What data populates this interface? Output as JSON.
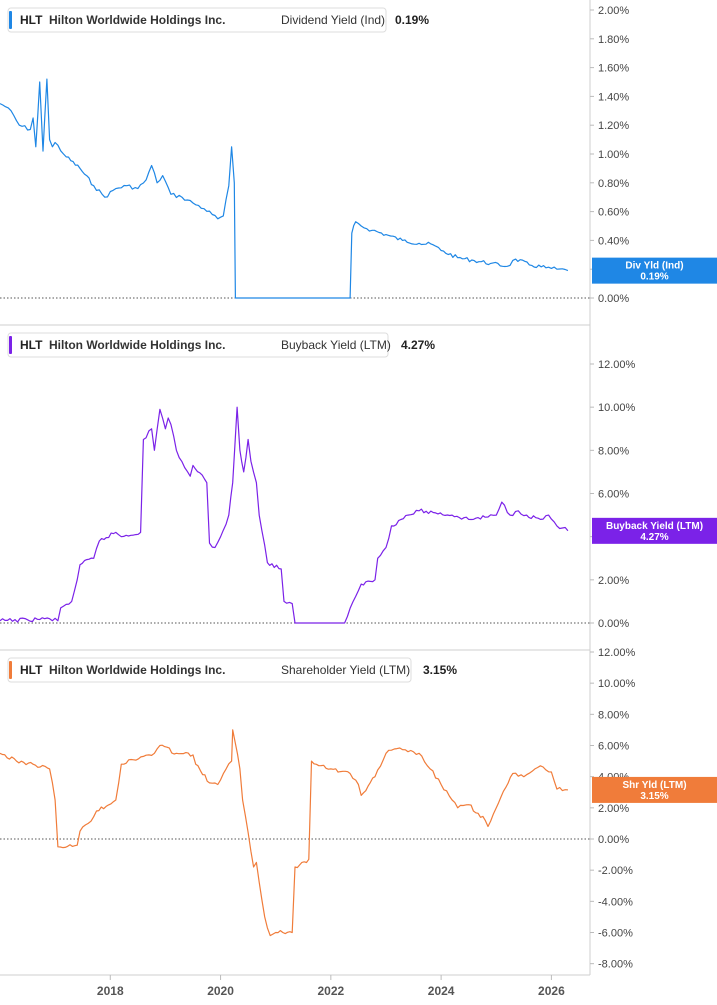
{
  "chart_data": [
    {
      "type": "line",
      "ticker": "HLT",
      "company": "Hilton Worldwide Holdings Inc.",
      "metric": "Dividend Yield (Ind)",
      "last_value": "0.19%",
      "badge_label": "Div Yld (Ind)",
      "badge_value": "0.19%",
      "color": "#1f87e5",
      "yticks": [
        "0.00%",
        "0.20%",
        "0.40%",
        "0.60%",
        "0.80%",
        "1.00%",
        "1.20%",
        "1.40%",
        "1.60%",
        "1.80%",
        "2.00%"
      ],
      "ylim": [
        0,
        2.0
      ],
      "zero_line": true,
      "series": [
        {
          "x": [
            2016.0,
            2016.15,
            2016.35,
            2016.55,
            2016.6,
            2016.65,
            2016.72,
            2016.78,
            2016.85,
            2016.9,
            2016.95,
            2017.0,
            2017.2,
            2017.45,
            2017.7,
            2017.9,
            2018.1,
            2018.3,
            2018.5,
            2018.65,
            2018.75,
            2018.85,
            2018.95,
            2019.1,
            2019.3,
            2019.5,
            2019.7,
            2019.85,
            2019.95,
            2020.05,
            2020.15,
            2020.2,
            2020.22,
            2020.25,
            2020.27,
            2021.0,
            2021.5,
            2022.0,
            2022.35,
            2022.38,
            2022.45,
            2022.55,
            2022.75,
            2023.0,
            2023.3,
            2023.6,
            2023.85,
            2024.0,
            2024.3,
            2024.6,
            2024.9,
            2025.2,
            2025.35,
            2025.6,
            2025.9,
            2026.1,
            2026.3
          ],
          "y": [
            1.35,
            1.32,
            1.2,
            1.17,
            1.25,
            1.05,
            1.5,
            1.02,
            1.52,
            1.1,
            1.05,
            1.08,
            0.98,
            0.9,
            0.78,
            0.7,
            0.76,
            0.78,
            0.76,
            0.82,
            0.92,
            0.8,
            0.85,
            0.72,
            0.7,
            0.66,
            0.62,
            0.58,
            0.55,
            0.57,
            0.78,
            1.05,
            0.95,
            0.8,
            0.0,
            0.0,
            0.0,
            0.0,
            0.0,
            0.45,
            0.53,
            0.5,
            0.47,
            0.44,
            0.4,
            0.38,
            0.37,
            0.33,
            0.28,
            0.26,
            0.24,
            0.22,
            0.27,
            0.23,
            0.21,
            0.2,
            0.19
          ]
        }
      ]
    },
    {
      "type": "line",
      "ticker": "HLT",
      "company": "Hilton Worldwide Holdings Inc.",
      "metric": "Buyback Yield (LTM)",
      "last_value": "4.27%",
      "badge_label": "Buyback Yield (LTM)",
      "badge_value": "4.27%",
      "color": "#7b22e8",
      "yticks": [
        "0.00%",
        "2.00%",
        "4.00%",
        "6.00%",
        "8.00%",
        "10.00%",
        "12.00%"
      ],
      "ylim": [
        0,
        12.0
      ],
      "zero_line": true,
      "series": [
        {
          "x": [
            2016.0,
            2016.5,
            2016.9,
            2017.05,
            2017.1,
            2017.3,
            2017.4,
            2017.45,
            2017.7,
            2017.8,
            2018.1,
            2018.2,
            2018.55,
            2018.6,
            2018.75,
            2018.8,
            2018.9,
            2019.0,
            2019.05,
            2019.1,
            2019.2,
            2019.35,
            2019.45,
            2019.5,
            2019.75,
            2019.8,
            2019.9,
            2020.0,
            2020.05,
            2020.15,
            2020.22,
            2020.3,
            2020.35,
            2020.42,
            2020.5,
            2020.55,
            2020.65,
            2020.7,
            2020.85,
            2021.1,
            2021.15,
            2021.3,
            2021.35,
            2021.6,
            2021.9,
            2022.25,
            2022.3,
            2022.5,
            2022.55,
            2022.8,
            2022.85,
            2023.0,
            2023.1,
            2023.4,
            2023.6,
            2023.9,
            2024.2,
            2024.5,
            2024.8,
            2025.0,
            2025.1,
            2025.25,
            2025.4,
            2025.55,
            2025.8,
            2025.95,
            2026.1,
            2026.2,
            2026.3
          ],
          "y": [
            0.1,
            0.15,
            0.2,
            0.1,
            0.7,
            1.0,
            2.0,
            2.7,
            3.0,
            3.8,
            4.2,
            4.0,
            4.2,
            8.5,
            9.0,
            8.0,
            9.9,
            9.0,
            9.5,
            9.2,
            8.0,
            7.2,
            6.8,
            7.3,
            6.5,
            3.7,
            3.5,
            4.0,
            4.3,
            5.0,
            6.5,
            10.0,
            8.0,
            7.0,
            8.5,
            7.5,
            6.5,
            5.0,
            2.8,
            2.5,
            1.0,
            0.9,
            0.0,
            0.0,
            0.0,
            0.0,
            0.3,
            1.5,
            1.8,
            2.0,
            3.0,
            3.5,
            4.5,
            5.0,
            5.2,
            5.1,
            5.0,
            4.8,
            4.9,
            5.0,
            5.6,
            5.0,
            5.2,
            5.0,
            4.8,
            5.0,
            4.5,
            4.4,
            4.27
          ]
        }
      ]
    },
    {
      "type": "line",
      "ticker": "HLT",
      "company": "Hilton Worldwide Holdings Inc.",
      "metric": "Shareholder Yield (LTM)",
      "last_value": "3.15%",
      "badge_label": "Shr Yld (LTM)",
      "badge_value": "3.15%",
      "color": "#f07c3a",
      "yticks": [
        "-8.00%",
        "-6.00%",
        "-4.00%",
        "-2.00%",
        "0.00%",
        "2.00%",
        "4.00%",
        "6.00%",
        "8.00%",
        "10.00%",
        "12.00%"
      ],
      "ylim": [
        -8.0,
        12.0
      ],
      "zero_line": true,
      "series": [
        {
          "x": [
            2016.0,
            2016.3,
            2016.6,
            2016.9,
            2017.0,
            2017.05,
            2017.4,
            2017.45,
            2017.6,
            2017.75,
            2018.1,
            2018.2,
            2018.6,
            2018.8,
            2018.9,
            2019.2,
            2019.5,
            2019.55,
            2019.8,
            2019.95,
            2020.1,
            2020.2,
            2020.22,
            2020.35,
            2020.4,
            2020.6,
            2020.65,
            2020.8,
            2020.9,
            2021.0,
            2021.3,
            2021.35,
            2021.6,
            2021.65,
            2022.0,
            2022.35,
            2022.5,
            2022.55,
            2022.8,
            2023.0,
            2023.2,
            2023.4,
            2023.6,
            2023.8,
            2024.0,
            2024.2,
            2024.3,
            2024.5,
            2024.8,
            2024.85,
            2025.0,
            2025.3,
            2025.5,
            2025.7,
            2025.8,
            2026.0,
            2026.1,
            2026.3
          ],
          "y": [
            5.5,
            5.0,
            4.8,
            4.5,
            2.5,
            -0.5,
            -0.4,
            0.5,
            1.0,
            1.8,
            2.5,
            4.8,
            5.3,
            5.5,
            6.0,
            5.5,
            5.4,
            4.8,
            3.6,
            3.5,
            4.5,
            5.0,
            7.0,
            4.5,
            2.5,
            -1.8,
            -1.5,
            -5.0,
            -6.2,
            -6.0,
            -6.0,
            -1.8,
            -1.3,
            5.0,
            4.5,
            4.2,
            3.5,
            2.8,
            4.0,
            5.5,
            5.8,
            5.6,
            5.5,
            4.5,
            3.5,
            2.5,
            2.0,
            2.2,
            1.2,
            0.8,
            2.0,
            4.2,
            4.0,
            4.5,
            4.7,
            4.3,
            3.2,
            3.15
          ]
        }
      ]
    }
  ],
  "x_axis": {
    "ticks": [
      "2018",
      "2020",
      "2022",
      "2024",
      "2026"
    ],
    "tick_values": [
      2018,
      2020,
      2022,
      2024,
      2026
    ]
  }
}
